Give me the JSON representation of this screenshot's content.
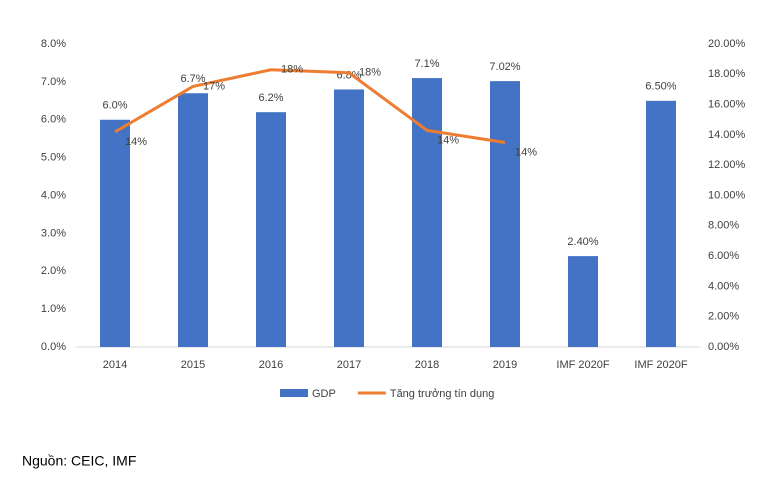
{
  "chart_data": {
    "type": "bar_line",
    "categories": [
      "2014",
      "2015",
      "2016",
      "2017",
      "2018",
      "2019",
      "IMF 2020F",
      "IMF 2020F"
    ],
    "series": [
      {
        "name": "GDP",
        "type": "bar",
        "color": "#4472c4",
        "values": [
          6.0,
          6.7,
          6.2,
          6.8,
          7.1,
          7.02,
          2.4,
          6.5
        ],
        "value_labels": [
          "6.0%",
          "6.7%",
          "6.2%",
          "6.8%",
          "7.1%",
          "7.02%",
          "2.40%",
          "6.50%"
        ]
      },
      {
        "name": "Tăng trưởng tín dụng",
        "type": "line",
        "axis": "y2",
        "color": "#ed7d31",
        "values": [
          14.2,
          17.2,
          18.3,
          18.1,
          14.3,
          13.5,
          null,
          null
        ],
        "value_labels": [
          "14%",
          "17%",
          "18%",
          "18%",
          "14%",
          "14%",
          null,
          null
        ]
      }
    ],
    "ylim": [
      0,
      8
    ],
    "yticks": [
      {
        "value": 0,
        "label": "0.0%"
      },
      {
        "value": 1,
        "label": "1.0%"
      },
      {
        "value": 2,
        "label": "2.0%"
      },
      {
        "value": 3,
        "label": "3.0%"
      },
      {
        "value": 4,
        "label": "4.0%"
      },
      {
        "value": 5,
        "label": "5.0%"
      },
      {
        "value": 6,
        "label": "6.0%"
      },
      {
        "value": 7,
        "label": "7.0%"
      },
      {
        "value": 8,
        "label": "8.0%"
      }
    ],
    "y2lim": [
      0,
      20
    ],
    "y2ticks": [
      {
        "value": 0,
        "label": "0.00%"
      },
      {
        "value": 2,
        "label": "2.00%"
      },
      {
        "value": 4,
        "label": "4.00%"
      },
      {
        "value": 6,
        "label": "6.00%"
      },
      {
        "value": 8,
        "label": "8.00%"
      },
      {
        "value": 10,
        "label": "10.00%"
      },
      {
        "value": 12,
        "label": "12.00%"
      },
      {
        "value": 14,
        "label": "14.00%"
      },
      {
        "value": 16,
        "label": "16.00%"
      },
      {
        "value": 18,
        "label": "18.00%"
      },
      {
        "value": 20,
        "label": "20.00%"
      }
    ],
    "legend": "bottom",
    "source": "Nguồn: CEIC, IMF"
  }
}
